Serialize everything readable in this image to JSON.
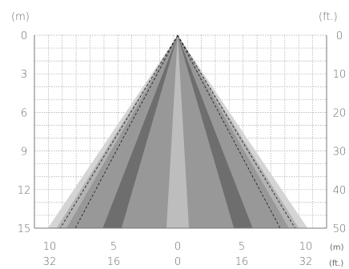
{
  "units": {
    "meters_left": "(m)",
    "feet_right": "(ft.)",
    "meters_bottom": "(m)",
    "feet_bottom": "(ft.)"
  },
  "left_axis_labels": [
    "0",
    "3",
    "6",
    "9",
    "12",
    "15"
  ],
  "right_axis_labels": [
    "0",
    "10",
    "20",
    "30",
    "40",
    "50"
  ],
  "bottom_meter_labels": [
    "10",
    "5",
    "0",
    "5",
    "10"
  ],
  "bottom_feet_labels": [
    "32",
    "16",
    "0",
    "16",
    "32"
  ],
  "colors": {
    "grid": "#a8a8a8",
    "zone_light": "#d4d4d4",
    "zone_mid": "#b3b3b3",
    "zone_darker": "#989898",
    "zone_dark": "#6e6e6e",
    "zone_center": "#bdbdbd",
    "dashed": "#222222"
  },
  "diagram": {
    "range_m": 15,
    "half_width_m": 10,
    "zones": [
      {
        "id": "outer-light",
        "color_key": "zone_light",
        "outer_at_15m": 10.4,
        "inner_at_15m": 0
      },
      {
        "id": "outer-mid",
        "color_key": "zone_mid",
        "outer_at_15m": 9.7,
        "inner_at_15m": 0
      },
      {
        "id": "outer-darker",
        "color_key": "zone_darker",
        "outer_at_15m": 8.9,
        "inner_at_15m": 0
      },
      {
        "id": "mid-dark",
        "color_key": "zone_dark",
        "outer_at_15m": 6.0,
        "inner_at_15m": 4.5
      },
      {
        "id": "center",
        "color_key": "zone_center",
        "outer_at_15m": 0.9,
        "inner_at_15m": 0
      }
    ],
    "dashed_at_15m": [
      9.4,
      8.2
    ]
  }
}
